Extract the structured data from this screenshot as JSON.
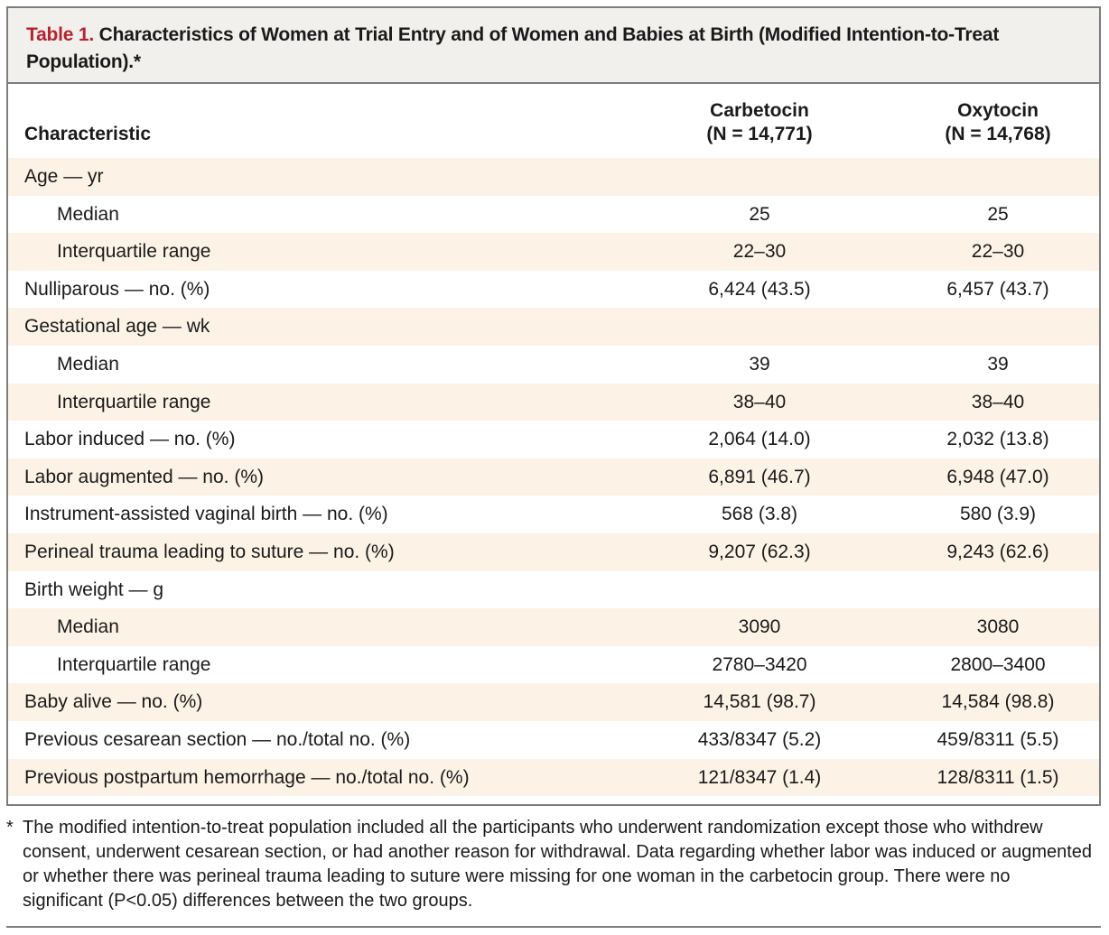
{
  "title": {
    "label": "Table 1.",
    "text": " Characteristics of Women at Trial Entry and of Women and Babies at Birth (Modified Intention-to-Treat Population).*"
  },
  "header": {
    "characteristic": "Characteristic",
    "col1_name": "Carbetocin",
    "col1_n": "(N = 14,771)",
    "col2_name": "Oxytocin",
    "col2_n": "(N = 14,768)"
  },
  "rows": [
    {
      "label": "Age — yr",
      "indent": false,
      "v1": "",
      "v2": ""
    },
    {
      "label": "Median",
      "indent": true,
      "v1": "25",
      "v2": "25"
    },
    {
      "label": "Interquartile range",
      "indent": true,
      "v1": "22–30",
      "v2": "22–30"
    },
    {
      "label": "Nulliparous — no. (%)",
      "indent": false,
      "v1": "6,424 (43.5)",
      "v2": "6,457 (43.7)"
    },
    {
      "label": "Gestational age — wk",
      "indent": false,
      "v1": "",
      "v2": ""
    },
    {
      "label": "Median",
      "indent": true,
      "v1": "39",
      "v2": "39"
    },
    {
      "label": "Interquartile range",
      "indent": true,
      "v1": "38–40",
      "v2": "38–40"
    },
    {
      "label": "Labor induced — no. (%)",
      "indent": false,
      "v1": "2,064 (14.0)",
      "v2": "2,032 (13.8)"
    },
    {
      "label": "Labor augmented — no. (%)",
      "indent": false,
      "v1": "6,891 (46.7)",
      "v2": "6,948 (47.0)"
    },
    {
      "label": "Instrument-assisted vaginal birth — no. (%)",
      "indent": false,
      "v1": "568 (3.8)",
      "v2": "580 (3.9)"
    },
    {
      "label": "Perineal trauma leading to suture — no. (%)",
      "indent": false,
      "v1": "9,207 (62.3)",
      "v2": "9,243 (62.6)"
    },
    {
      "label": "Birth weight — g",
      "indent": false,
      "v1": "",
      "v2": ""
    },
    {
      "label": "Median",
      "indent": true,
      "v1": "3090",
      "v2": "3080"
    },
    {
      "label": "Interquartile range",
      "indent": true,
      "v1": "2780–3420",
      "v2": "2800–3400"
    },
    {
      "label": "Baby alive — no. (%)",
      "indent": false,
      "v1": "14,581 (98.7)",
      "v2": "14,584 (98.8)"
    },
    {
      "label": "Previous cesarean section — no./total no. (%)",
      "indent": false,
      "v1": "433/8347 (5.2)",
      "v2": "459/8311 (5.5)"
    },
    {
      "label": "Previous postpartum hemorrhage — no./total no. (%)",
      "indent": false,
      "v1": "121/8347 (1.4)",
      "v2": "128/8311 (1.5)"
    }
  ],
  "footnote": {
    "mark": "*",
    "text": "The modified intention-to-treat population included all the participants who underwent randomization except those who withdrew consent, underwent cesarean section, or had another reason for withdrawal. Data regarding whether labor was induced or augmented or whether there was perineal trauma leading to suture were missing for one woman in the carbetocin group. There were no significant (P<0.05) differences between the two groups."
  }
}
